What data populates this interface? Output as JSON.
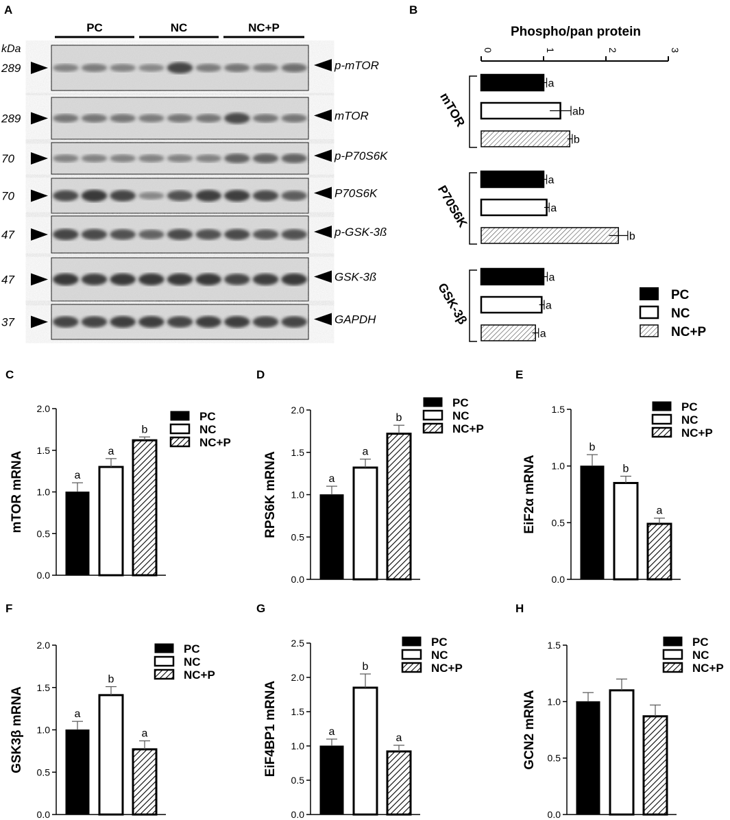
{
  "panel_letters": [
    "A",
    "B",
    "C",
    "D",
    "E",
    "F",
    "G",
    "H"
  ],
  "colors": {
    "pc": "#000000",
    "nc": "#ffffff",
    "ncp_hatch": "#000000",
    "blot_bg": "#dcdcdc",
    "band": "#2b2b2b"
  },
  "blot": {
    "kda_label": "kDa",
    "groups": [
      "PC",
      "NC",
      "NC+P"
    ],
    "rows": [
      {
        "mw": "289",
        "label": "p-mTOR",
        "intensities": [
          0.35,
          0.4,
          0.35,
          0.3,
          0.85,
          0.4,
          0.45,
          0.4,
          0.5
        ]
      },
      {
        "mw": "289",
        "label": "mTOR",
        "intensities": [
          0.45,
          0.45,
          0.45,
          0.4,
          0.45,
          0.45,
          0.8,
          0.45,
          0.45
        ]
      },
      {
        "mw": "70",
        "label": "p-P70S6K",
        "intensities": [
          0.35,
          0.35,
          0.35,
          0.35,
          0.35,
          0.35,
          0.6,
          0.6,
          0.6
        ]
      },
      {
        "mw": "70",
        "label": "P70S6K",
        "intensities": [
          0.8,
          0.95,
          0.85,
          0.3,
          0.75,
          0.9,
          0.9,
          0.8,
          0.65
        ]
      },
      {
        "mw": "47",
        "label": "p-GSK-3ß",
        "intensities": [
          0.85,
          0.8,
          0.75,
          0.6,
          0.8,
          0.75,
          0.8,
          0.7,
          0.75
        ]
      },
      {
        "mw": "47",
        "label": "GSK-3ß",
        "intensities": [
          0.95,
          0.9,
          0.95,
          0.95,
          0.95,
          0.95,
          0.85,
          0.9,
          0.95
        ]
      },
      {
        "mw": "37",
        "label": "GAPDH",
        "intensities": [
          0.85,
          0.85,
          0.9,
          0.9,
          0.85,
          0.9,
          0.9,
          0.85,
          0.85
        ]
      }
    ]
  },
  "chart_data": [
    {
      "panel": "B",
      "type": "bar",
      "orientation": "horizontal",
      "title": "Phospho/pan protein",
      "xlim": [
        0,
        3
      ],
      "xticks": [
        "0",
        "1",
        "2",
        "3"
      ],
      "categories": [
        "mTOR",
        "P70S6K",
        "GSK-3β"
      ],
      "series": [
        {
          "name": "PC",
          "values": [
            1.0,
            1.0,
            1.0
          ],
          "errors": [
            0.05,
            0.05,
            0.06
          ],
          "letters": [
            "a",
            "a",
            "a"
          ]
        },
        {
          "name": "NC",
          "values": [
            1.27,
            1.05,
            0.97
          ],
          "errors": [
            0.17,
            0.04,
            0.04
          ],
          "letters": [
            "ab",
            "a",
            "a"
          ]
        },
        {
          "name": "NC+P",
          "values": [
            1.42,
            2.2,
            0.87
          ],
          "errors": [
            0.04,
            0.15,
            0.05
          ],
          "letters": [
            "b",
            "b",
            "a"
          ]
        }
      ],
      "legend": [
        "PC",
        "NC",
        "NC+P"
      ]
    },
    {
      "panel": "C",
      "type": "bar",
      "ylabel": "mTOR mRNA",
      "ylim": [
        0,
        2.0
      ],
      "yticks": [
        "0.0",
        "0.5",
        "1.0",
        "1.5",
        "2.0"
      ],
      "categories": [
        "PC",
        "NC",
        "NC+P"
      ],
      "values": [
        1.0,
        1.3,
        1.62
      ],
      "errors": [
        0.11,
        0.1,
        0.04
      ],
      "letters": [
        "a",
        "a",
        "b"
      ]
    },
    {
      "panel": "D",
      "type": "bar",
      "ylabel": "RPS6K mRNA",
      "ylim": [
        0,
        2.0
      ],
      "yticks": [
        "0.0",
        "0.5",
        "1.0",
        "1.5",
        "2.0"
      ],
      "categories": [
        "PC",
        "NC",
        "NC+P"
      ],
      "values": [
        1.0,
        1.32,
        1.72
      ],
      "errors": [
        0.1,
        0.1,
        0.1
      ],
      "letters": [
        "a",
        "a",
        "b"
      ]
    },
    {
      "panel": "E",
      "type": "bar",
      "ylabel": "EiF2α mRNA",
      "ylim": [
        0,
        1.5
      ],
      "yticks": [
        "0.0",
        "0.5",
        "1.0",
        "1.5"
      ],
      "categories": [
        "PC",
        "NC",
        "NC+P"
      ],
      "values": [
        1.0,
        0.85,
        0.49
      ],
      "errors": [
        0.1,
        0.06,
        0.05
      ],
      "letters": [
        "b",
        "b",
        "a"
      ]
    },
    {
      "panel": "F",
      "type": "bar",
      "ylabel": "GSK3β mRNA",
      "ylim": [
        0,
        2.0
      ],
      "yticks": [
        "0.0",
        "0.5",
        "1.0",
        "1.5",
        "2.0"
      ],
      "categories": [
        "PC",
        "NC",
        "NC+P"
      ],
      "values": [
        1.0,
        1.41,
        0.77
      ],
      "errors": [
        0.1,
        0.1,
        0.1
      ],
      "letters": [
        "a",
        "b",
        "a"
      ]
    },
    {
      "panel": "G",
      "type": "bar",
      "ylabel": "EiF4BP1 mRNA",
      "ylim": [
        0,
        2.5
      ],
      "yticks": [
        "0.0",
        "0.5",
        "1.0",
        "1.5",
        "2.0",
        "2.5"
      ],
      "categories": [
        "PC",
        "NC",
        "NC+P"
      ],
      "values": [
        1.0,
        1.85,
        0.92
      ],
      "errors": [
        0.1,
        0.2,
        0.09
      ],
      "letters": [
        "a",
        "b",
        "a"
      ]
    },
    {
      "panel": "H",
      "type": "bar",
      "ylabel": "GCN2 mRNA",
      "ylim": [
        0,
        1.5
      ],
      "yticks": [
        "0.0",
        "0.5",
        "1.0",
        "1.5"
      ],
      "categories": [
        "PC",
        "NC",
        "NC+P"
      ],
      "values": [
        1.0,
        1.1,
        0.87
      ],
      "errors": [
        0.08,
        0.1,
        0.1
      ],
      "letters": [
        "",
        "",
        ""
      ]
    }
  ]
}
